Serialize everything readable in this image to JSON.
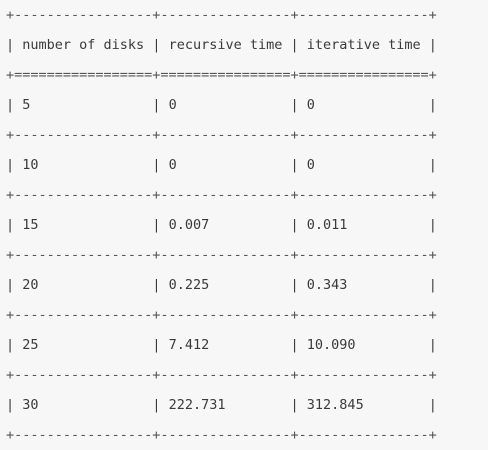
{
  "table": {
    "headers": [
      "number of disks",
      "recursive time",
      "iterative time"
    ],
    "rows": [
      [
        "5",
        "0",
        "0"
      ],
      [
        "10",
        "0",
        "0"
      ],
      [
        "15",
        "0.007",
        "0.011"
      ],
      [
        "20",
        "0.225",
        "0.343"
      ],
      [
        "25",
        "7.412",
        "10.090"
      ],
      [
        "30",
        "222.731",
        "312.845"
      ]
    ]
  }
}
